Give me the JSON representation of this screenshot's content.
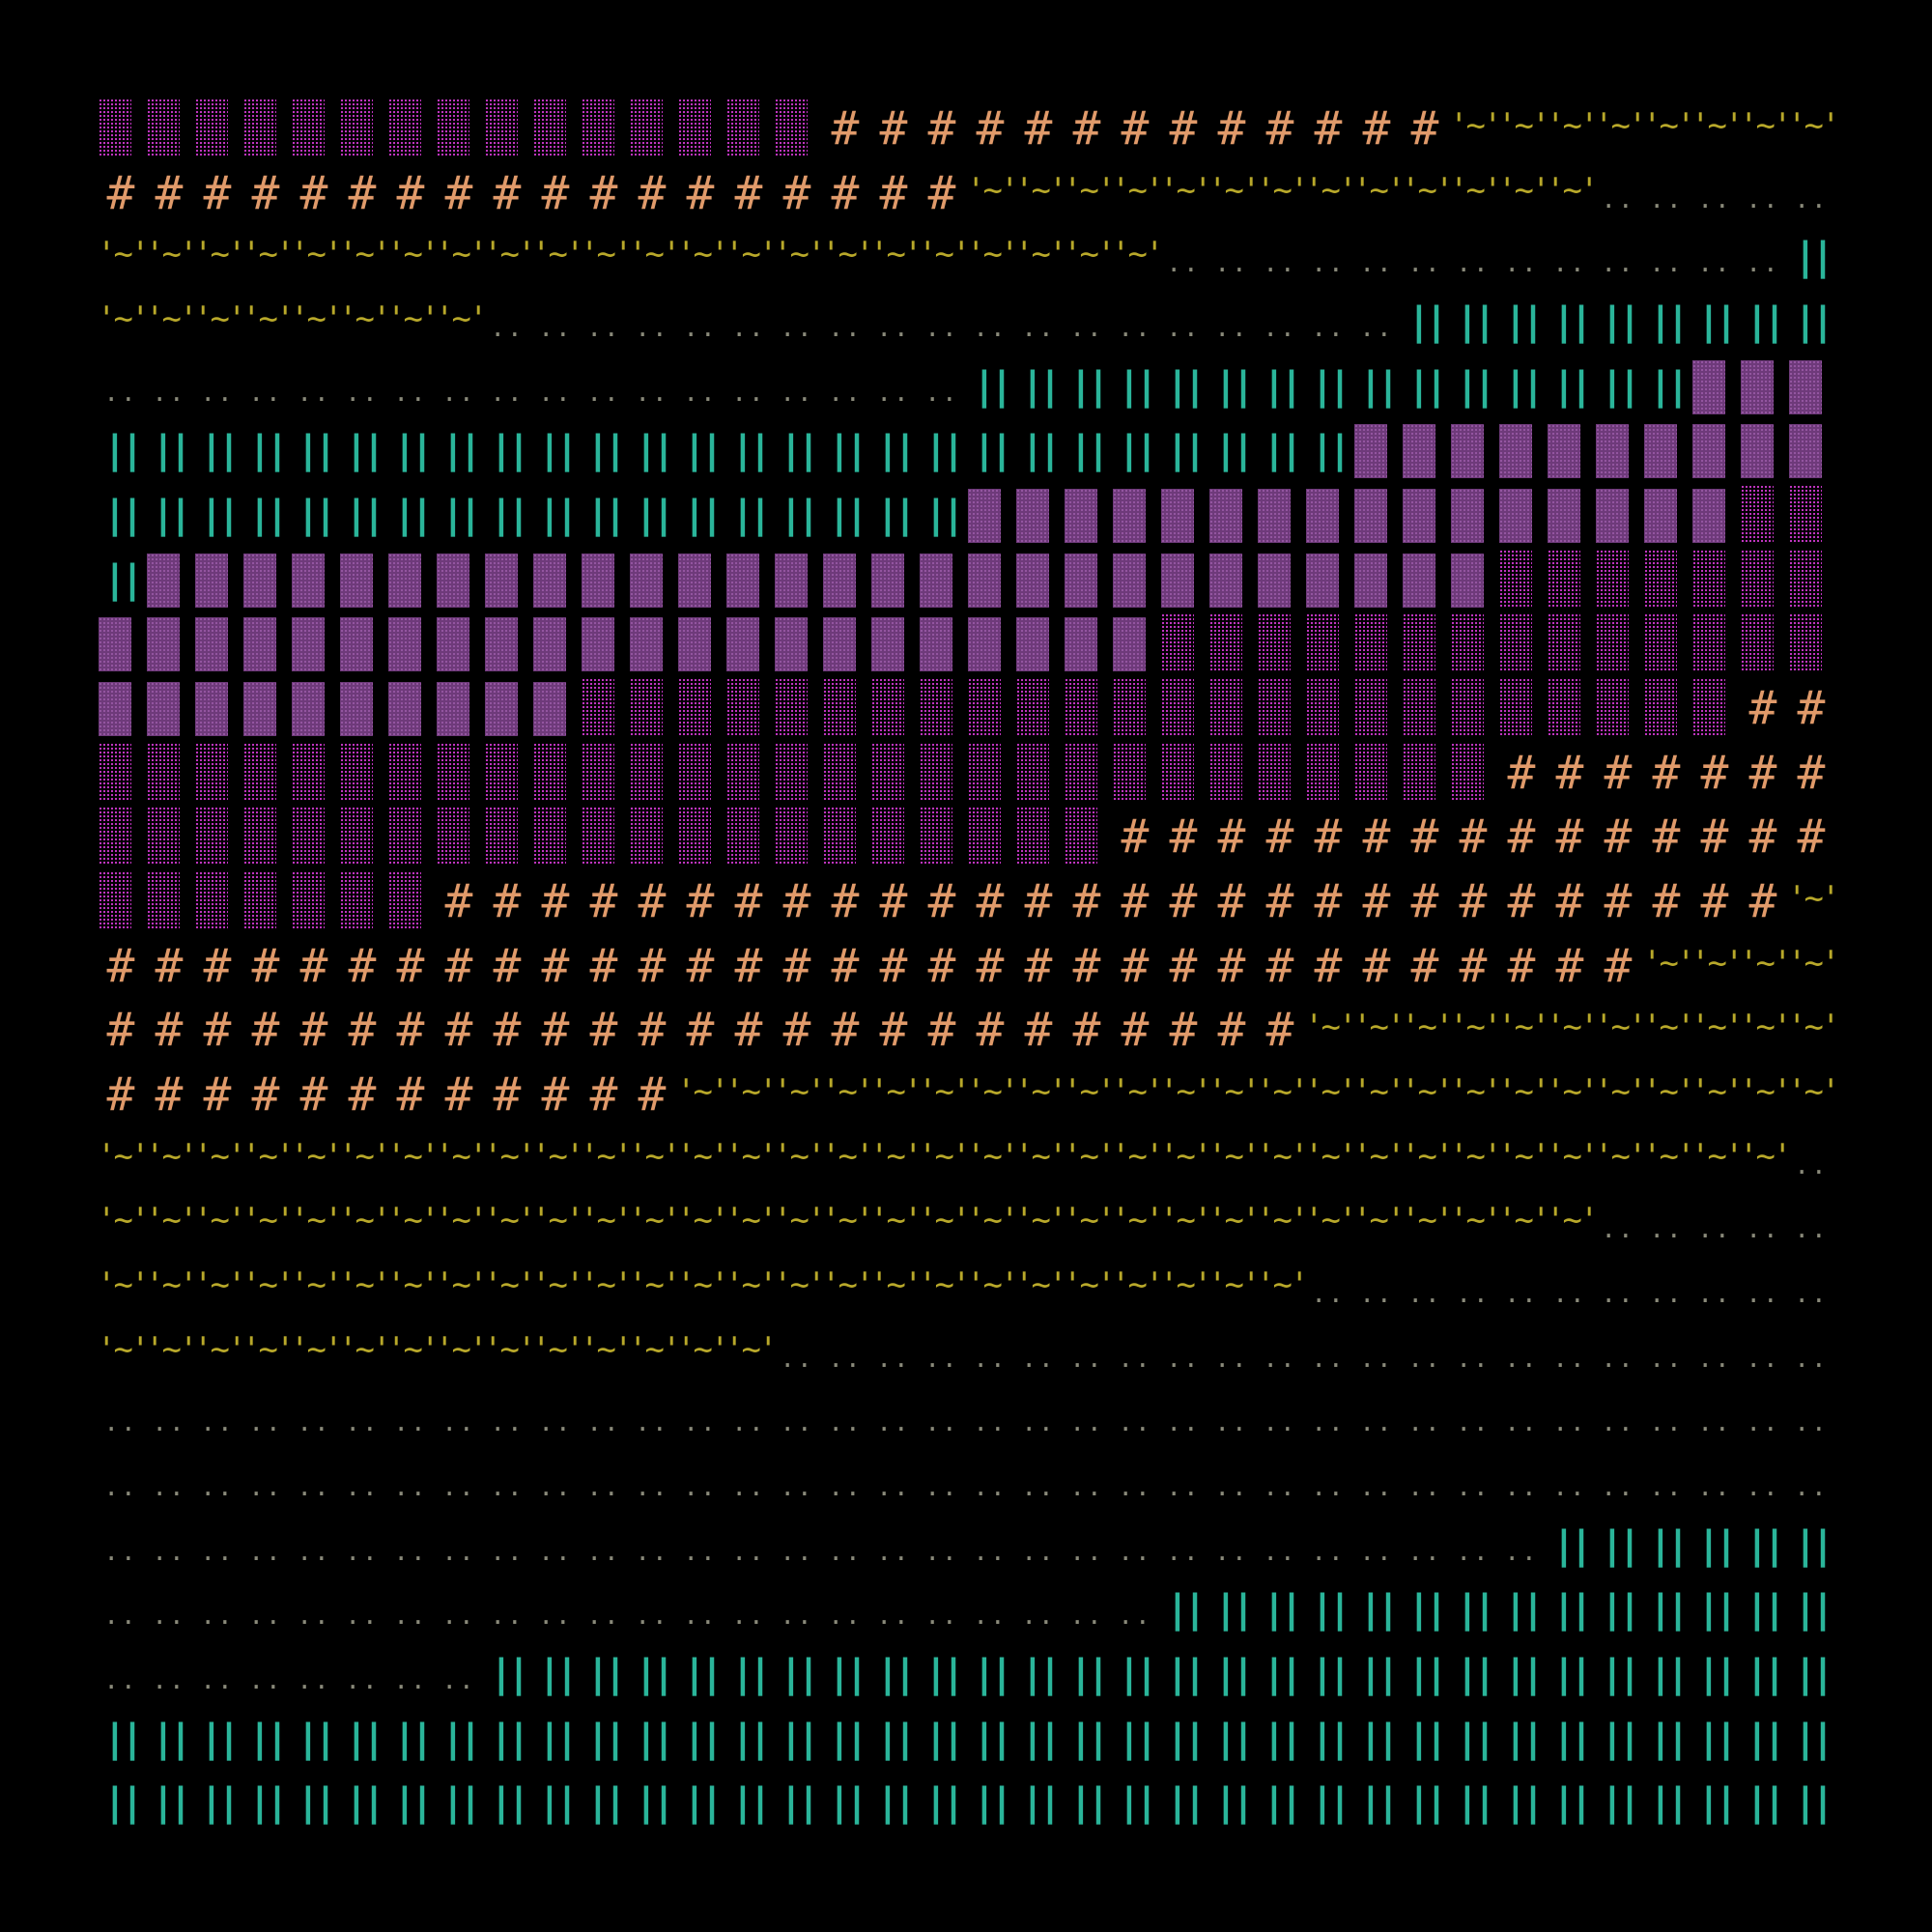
{
  "grid": {
    "cols": 36,
    "rows": 27
  },
  "palette": {
    "background": "#000000",
    "stipple": "#d43ad4",
    "blocks": "#6e3a7a",
    "blocks_dot": "#9a5aa8",
    "hash": "#e09a6a",
    "wave": "#b8a82a",
    "dots": "#8a8a7a",
    "bars": "#2ab59a"
  },
  "glyphs": {
    "stipple": {
      "char": "░",
      "color_key": "stipple"
    },
    "blocks": {
      "char": "▓",
      "color_key": "blocks"
    },
    "hash": {
      "char": "#",
      "color_key": "hash"
    },
    "wave": {
      "char": "'~'",
      "color_key": "wave"
    },
    "dots": {
      "char": "..",
      "color_key": "dots"
    },
    "bars": {
      "char": "||",
      "color_key": "bars"
    }
  },
  "rows": [
    "sssssssssssssssHHHHHHHHHHHHHwwwwwwww",
    "HHHHHHHHHHHHHHHHHHwwwwwwwwwwwwwddddd",
    "wwwwwwwwwwwwwwwwwwwwwwdddddddddddddb",
    "wwwwwwwwdddddddddddddddddddbbbbbbbbb",
    "ddddddddddddddddddbbbbbbbbbbbbbbbkkk",
    "bbbbbbbbbbbbbbbbbbbbbbbbbbkkkkkkkkkk",
    "bbbbbbbbbbbbbbbbbbkkkkkkkkkkkkkkkkss",
    "bkkkkkkkkkkkkkkkkkkkkkkkkkkkksssssss",
    "kkkkkkkkkkkkkkkkkkkkkkssssssssssssss",
    "kkkkkkkkkkssssssssssssssssssssssssHH",
    "sssssssssssssssssssssssssssssHHHHHHH",
    "sssssssssssssssssssssHHHHHHHHHHHHHHH",
    "sssssssHHHHHHHHHHHHHHHHHHHHHHHHHHHHw",
    "HHHHHHHHHHHHHHHHHHHHHHHHHHHHHHHHwwww",
    "HHHHHHHHHHHHHHHHHHHHHHHHHwwwwwwwwwww",
    "HHHHHHHHHHHHwwwwwwwwwwwwwwwwwwwwwwww",
    "wwwwwwwwwwwwwwwwwwwwwwwwwwwwwwwwwwwd",
    "wwwwwwwwwwwwwwwwwwwwwwwwwwwwwwwddddd",
    "wwwwwwwwwwwwwwwwwwwwwwwwwddddddddddd",
    "wwwwwwwwwwwwwwdddddddddddddddddddddd",
    "dddddddddddddddddddddddddddddddddddd",
    "dddddddddddddddddddddddddddddddddddd",
    "ddddddddddddddddddddddddddddddbbbbbb",
    "ddddddddddddddddddddddbbbbbbbbbbbbbb",
    "ddddddddbbbbbbbbbbbbbbbbbbbbbbbbbbbb",
    "bbbbbbbbbbbbbbbbbbbbbbbbbbbbbbbbbbbb",
    "bbbbbbbbbbbbbbbbbbbbbbbbbbbbbbbbbbbb"
  ]
}
